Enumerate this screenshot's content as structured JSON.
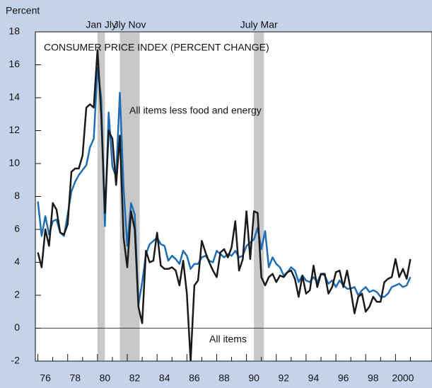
{
  "chart_data": {
    "type": "line",
    "title": "CONSUMER PRICE INDEX (PERCENT CHANGE)",
    "ylabel": "Percent",
    "x": [
      1976,
      1976.25,
      1976.5,
      1976.75,
      1977,
      1977.25,
      1977.5,
      1977.75,
      1978,
      1978.25,
      1978.5,
      1978.75,
      1979,
      1979.25,
      1979.5,
      1979.75,
      1980,
      1980.25,
      1980.5,
      1980.75,
      1981,
      1981.25,
      1981.5,
      1981.75,
      1982,
      1982.25,
      1982.5,
      1982.75,
      1983,
      1983.25,
      1983.5,
      1983.75,
      1984,
      1984.25,
      1984.5,
      1984.75,
      1985,
      1985.25,
      1985.5,
      1985.75,
      1986,
      1986.25,
      1986.5,
      1986.75,
      1987,
      1987.25,
      1987.5,
      1987.75,
      1988,
      1988.25,
      1988.5,
      1988.75,
      1989,
      1989.25,
      1989.5,
      1989.75,
      1990,
      1990.25,
      1990.5,
      1990.75,
      1991,
      1991.25,
      1991.5,
      1991.75,
      1992,
      1992.25,
      1992.5,
      1992.75,
      1993,
      1993.25,
      1993.5,
      1993.75,
      1994,
      1994.25,
      1994.5,
      1994.75,
      1995,
      1995.25,
      1995.5,
      1995.75,
      1996,
      1996.25,
      1996.5,
      1996.75,
      1997,
      1997.25,
      1997.5,
      1997.75,
      1998,
      1998.25,
      1998.5,
      1998.75,
      1999,
      1999.25,
      1999.5,
      1999.75,
      2000,
      2000.25,
      2000.5,
      2000.75,
      2001
    ],
    "series": [
      {
        "name": "All items",
        "color": "#1a1a1a",
        "values": [
          4.6,
          3.7,
          6.0,
          5.0,
          7.6,
          7.2,
          5.8,
          5.7,
          6.3,
          9.5,
          9.7,
          9.7,
          10.5,
          13.4,
          13.6,
          13.4,
          16.9,
          13.0,
          7.0,
          12.0,
          11.5,
          8.7,
          11.7,
          5.5,
          3.7,
          7.1,
          6.0,
          1.3,
          0.3,
          4.7,
          4.0,
          4.1,
          5.8,
          3.8,
          3.6,
          3.6,
          3.7,
          3.5,
          2.6,
          4.1,
          2.1,
          -2.0,
          2.6,
          2.9,
          5.3,
          4.6,
          4.0,
          3.5,
          3.1,
          4.6,
          4.8,
          4.3,
          4.9,
          6.5,
          3.5,
          4.2,
          7.1,
          4.2,
          7.1,
          7.0,
          3.1,
          2.6,
          3.1,
          3.3,
          2.8,
          3.2,
          3.1,
          3.4,
          3.5,
          3.0,
          1.9,
          3.2,
          2.1,
          2.3,
          3.8,
          2.5,
          3.3,
          3.3,
          2.1,
          2.5,
          3.4,
          3.5,
          2.5,
          3.5,
          2.3,
          0.9,
          1.9,
          2.1,
          1.0,
          1.3,
          1.9,
          1.6,
          1.6,
          2.8,
          3.0,
          3.1,
          4.2,
          3.1,
          3.6,
          3.0,
          4.2
        ]
      },
      {
        "name": "All items less food and energy",
        "color": "#1f6eb5",
        "values": [
          7.7,
          5.6,
          6.8,
          5.7,
          6.5,
          6.6,
          5.8,
          5.6,
          6.9,
          8.3,
          8.9,
          9.3,
          9.6,
          9.9,
          11.0,
          11.5,
          15.8,
          14.0,
          6.2,
          13.1,
          9.8,
          9.2,
          14.3,
          8.5,
          5.0,
          7.6,
          6.9,
          1.4,
          2.8,
          4.5,
          5.1,
          5.3,
          5.5,
          5.1,
          5.0,
          4.1,
          4.4,
          4.2,
          3.9,
          4.7,
          4.4,
          3.6,
          3.9,
          3.9,
          4.3,
          4.4,
          4.1,
          4.0,
          4.7,
          4.5,
          4.3,
          4.5,
          4.4,
          4.7,
          4.3,
          4.4,
          5.0,
          5.2,
          5.4,
          6.1,
          4.8,
          5.9,
          3.7,
          4.3,
          3.9,
          3.7,
          3.2,
          3.4,
          3.7,
          3.5,
          2.8,
          3.2,
          2.9,
          2.8,
          3.1,
          2.8,
          3.3,
          3.2,
          2.7,
          2.9,
          2.5,
          2.9,
          2.6,
          2.4,
          2.4,
          2.5,
          2.0,
          2.3,
          2.5,
          2.2,
          2.3,
          2.2,
          1.9,
          1.9,
          2.1,
          2.5,
          2.6,
          2.7,
          2.5,
          2.6,
          3.1
        ]
      }
    ],
    "recessions": [
      {
        "start": 1980.0,
        "end": 1980.5,
        "label": "Jan Jly"
      },
      {
        "start": 1981.5,
        "end": 1982.83,
        "label": "Jly Nov"
      },
      {
        "start": 1990.5,
        "end": 1991.17,
        "label": "July Mar"
      }
    ],
    "xlim": [
      1975.83,
      2002.45
    ],
    "xticks": [
      {
        "value": 1976,
        "label": "76"
      },
      {
        "value": 1978,
        "label": "78"
      },
      {
        "value": 1980,
        "label": "80"
      },
      {
        "value": 1982,
        "label": "82"
      },
      {
        "value": 1984,
        "label": "84"
      },
      {
        "value": 1986,
        "label": "86"
      },
      {
        "value": 1988,
        "label": "88"
      },
      {
        "value": 1990,
        "label": "90"
      },
      {
        "value": 1992,
        "label": "92"
      },
      {
        "value": 1994,
        "label": "94"
      },
      {
        "value": 1996,
        "label": "96"
      },
      {
        "value": 1998,
        "label": "98"
      },
      {
        "value": 2000,
        "label": "2000"
      }
    ],
    "ylim": [
      -2,
      18
    ],
    "yticks": [
      -2,
      0,
      2,
      4,
      6,
      8,
      10,
      12,
      14,
      16,
      18
    ]
  }
}
